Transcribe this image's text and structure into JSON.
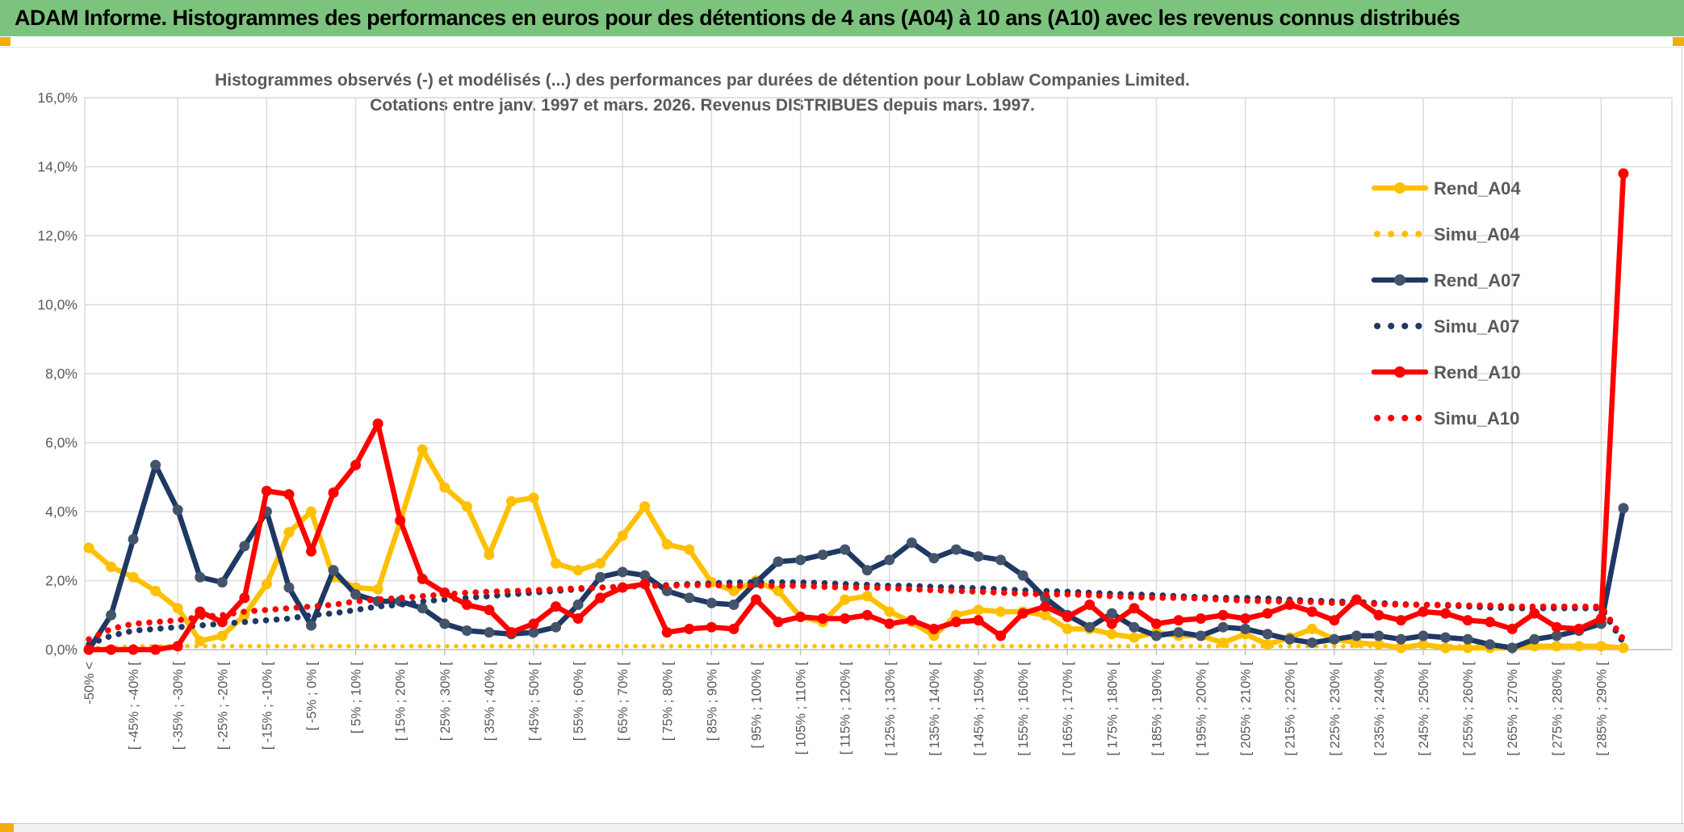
{
  "window": {
    "header_title": "ADAM Informe. Histogrammes des performances en euros pour des détentions de 4 ans (A04) à 10 ans (A10) avec les revenus connus distribués"
  },
  "chart": {
    "title_line1": "Histogrammes observés (-) et modélisés (...) des performances par durées de détention pour Loblaw Companies Limited.",
    "title_line2": "Cotations entre janv. 1997 et mars. 2026. Revenus DISTRIBUES depuis mars. 1997."
  },
  "colors": {
    "header_green": "#7cc47d",
    "accent_yellow": "#f2ac0e",
    "gold": "#FFC000",
    "navy": "#1F3864",
    "navy_marker": "#44546A",
    "red": "#FF0000",
    "text_gray": "#595959",
    "gridline": "#D9D9D9",
    "axis_line": "#BFBFBF"
  },
  "chart_data": {
    "type": "line",
    "title": "Histogrammes observés (-) et modélisés (...) des performances par durées de détention pour Loblaw Companies Limited. Cotations entre janv. 1997 et mars. 2026. Revenus DISTRIBUES depuis mars. 1997.",
    "xlabel": "",
    "ylabel": "",
    "ylim": [
      0,
      16
    ],
    "grid": true,
    "legend_position": "right-top",
    "y_tick_labels": [
      "0,0%",
      "2,0%",
      "4,0%",
      "6,0%",
      "8,0%",
      "10,0%",
      "12,0%",
      "14,0%",
      "16,0%"
    ],
    "categories": [
      "-50% <",
      "",
      "[ -45% ; -40% [",
      "",
      "[ -35% ; -30% [",
      "",
      "[ -25% ; -20% [",
      "",
      "[ -15% ; -10% [",
      "",
      "[ -5% ; 0% [",
      "",
      "[ 5% ; 10% [",
      "",
      "[ 15% ; 20% [",
      "",
      "[ 25% ; 30% [",
      "",
      "[ 35% ; 40% [",
      "",
      "[ 45% ; 50% [",
      "",
      "[ 55% ; 60% [",
      "",
      "[ 65% ; 70% [",
      "",
      "[ 75% ; 80% [",
      "",
      "[ 85% ; 90% [",
      "",
      "[ 95% ; 100% [",
      "",
      "[ 105% ; 110% [",
      "",
      "[ 115% ; 120% [",
      "",
      "[ 125% ; 130% [",
      "",
      "[ 135% ; 140% [",
      "",
      "[ 145% ; 150% [",
      "",
      "[ 155% ; 160% [",
      "",
      "[ 165% ; 170% [",
      "",
      "[ 175% ; 180% [",
      "",
      "[ 185% ; 190% [",
      "",
      "[ 195% ; 200% [",
      "",
      "[ 205% ; 210% [",
      "",
      "[ 215% ; 220% [",
      "",
      "[ 225% ; 230% [",
      "",
      "[ 235% ; 240% [",
      "",
      "[ 245% ; 250% [",
      "",
      "[ 255% ; 260% [",
      "",
      "[ 265% ; 270% [",
      "",
      "[ 275% ; 280% [",
      "",
      "[ 285% ; 290% [",
      ""
    ],
    "series": [
      {
        "name": "Rend_A04",
        "color": "#FFC000",
        "marker_color": "#FFC000",
        "style": "solid",
        "values": [
          2.95,
          2.4,
          2.1,
          1.7,
          1.2,
          0.25,
          0.4,
          1.0,
          1.9,
          3.4,
          4.0,
          2.1,
          1.8,
          1.75,
          3.7,
          5.8,
          4.7,
          4.15,
          2.75,
          4.3,
          4.4,
          2.5,
          2.3,
          2.5,
          3.3,
          4.15,
          3.05,
          2.9,
          1.95,
          1.7,
          2.0,
          1.7,
          0.95,
          0.8,
          1.45,
          1.55,
          1.1,
          0.8,
          0.4,
          1.0,
          1.15,
          1.1,
          1.1,
          1.0,
          0.6,
          0.6,
          0.45,
          0.35,
          0.5,
          0.4,
          0.4,
          0.2,
          0.45,
          0.15,
          0.35,
          0.6,
          0.3,
          0.2,
          0.15,
          0.05,
          0.15,
          0.05,
          0.05,
          0.05,
          0.05,
          0.1,
          0.1,
          0.1,
          0.1,
          0.05
        ]
      },
      {
        "name": "Simu_A04",
        "color": "#FFC000",
        "marker_color": "#FFC000",
        "style": "dotted",
        "values": [
          0.05,
          0.05,
          0.1,
          0.1,
          0.1,
          0.1,
          0.1,
          0.1,
          0.1,
          0.1,
          0.1,
          0.1,
          0.1,
          0.1,
          0.1,
          0.1,
          0.1,
          0.1,
          0.1,
          0.1,
          0.1,
          0.1,
          0.1,
          0.1,
          0.1,
          0.1,
          0.1,
          0.1,
          0.1,
          0.1,
          0.1,
          0.1,
          0.1,
          0.1,
          0.1,
          0.1,
          0.1,
          0.1,
          0.1,
          0.1,
          0.1,
          0.1,
          0.1,
          0.1,
          0.1,
          0.1,
          0.1,
          0.1,
          0.1,
          0.1,
          0.1,
          0.1,
          0.1,
          0.1,
          0.1,
          0.1,
          0.1,
          0.1,
          0.1,
          0.1,
          0.1,
          0.1,
          0.1,
          0.1,
          0.1,
          0.1,
          0.1,
          0.1,
          0.1,
          0.05
        ]
      },
      {
        "name": "Rend_A07",
        "color": "#1F3864",
        "marker_color": "#44546A",
        "style": "solid",
        "values": [
          0.0,
          1.0,
          3.2,
          5.35,
          4.05,
          2.1,
          1.95,
          3.0,
          4.0,
          1.8,
          0.7,
          2.3,
          1.6,
          1.4,
          1.4,
          1.2,
          0.75,
          0.55,
          0.5,
          0.45,
          0.5,
          0.65,
          1.3,
          2.1,
          2.25,
          2.15,
          1.7,
          1.5,
          1.35,
          1.3,
          1.95,
          2.55,
          2.6,
          2.75,
          2.9,
          2.3,
          2.6,
          3.1,
          2.65,
          2.9,
          2.7,
          2.6,
          2.15,
          1.5,
          1.0,
          0.65,
          1.05,
          0.65,
          0.4,
          0.5,
          0.4,
          0.65,
          0.6,
          0.45,
          0.3,
          0.2,
          0.3,
          0.4,
          0.4,
          0.3,
          0.4,
          0.35,
          0.3,
          0.15,
          0.05,
          0.3,
          0.4,
          0.55,
          0.75,
          4.1
        ]
      },
      {
        "name": "Simu_A07",
        "color": "#1F3864",
        "marker_color": "#1F3864",
        "style": "dotted",
        "values": [
          0.15,
          0.4,
          0.55,
          0.6,
          0.65,
          0.7,
          0.75,
          0.8,
          0.85,
          0.9,
          1.0,
          1.05,
          1.15,
          1.25,
          1.3,
          1.4,
          1.45,
          1.5,
          1.55,
          1.6,
          1.65,
          1.7,
          1.75,
          1.8,
          1.82,
          1.85,
          1.87,
          1.9,
          1.92,
          1.95,
          1.95,
          1.95,
          1.95,
          1.93,
          1.9,
          1.88,
          1.85,
          1.85,
          1.82,
          1.8,
          1.78,
          1.75,
          1.72,
          1.7,
          1.68,
          1.65,
          1.62,
          1.6,
          1.58,
          1.55,
          1.52,
          1.5,
          1.5,
          1.48,
          1.45,
          1.42,
          1.4,
          1.38,
          1.35,
          1.32,
          1.3,
          1.28,
          1.25,
          1.22,
          1.2,
          1.2,
          1.2,
          1.2,
          1.2,
          0.2
        ]
      },
      {
        "name": "Rend_A10",
        "color": "#FF0000",
        "marker_color": "#FF0000",
        "style": "solid",
        "values": [
          0.0,
          0.0,
          0.0,
          0.0,
          0.1,
          1.1,
          0.8,
          1.5,
          4.6,
          4.5,
          2.85,
          4.55,
          5.35,
          6.55,
          3.75,
          2.05,
          1.65,
          1.3,
          1.15,
          0.5,
          0.75,
          1.25,
          0.9,
          1.5,
          1.8,
          1.9,
          0.5,
          0.6,
          0.65,
          0.6,
          1.45,
          0.8,
          0.95,
          0.9,
          0.9,
          1.0,
          0.75,
          0.85,
          0.6,
          0.8,
          0.85,
          0.4,
          1.05,
          1.25,
          0.95,
          1.3,
          0.75,
          1.2,
          0.75,
          0.85,
          0.9,
          1.0,
          0.9,
          1.05,
          1.3,
          1.1,
          0.85,
          1.45,
          1.0,
          0.85,
          1.1,
          1.05,
          0.85,
          0.8,
          0.6,
          1.05,
          0.65,
          0.6,
          0.9,
          13.8
        ]
      },
      {
        "name": "Simu_A10",
        "color": "#FF0000",
        "marker_color": "#FF0000",
        "style": "dotted",
        "values": [
          0.3,
          0.6,
          0.75,
          0.8,
          0.85,
          0.95,
          1.0,
          1.1,
          1.15,
          1.2,
          1.25,
          1.3,
          1.4,
          1.45,
          1.5,
          1.55,
          1.6,
          1.65,
          1.68,
          1.7,
          1.72,
          1.75,
          1.78,
          1.8,
          1.82,
          1.85,
          1.85,
          1.87,
          1.87,
          1.85,
          1.85,
          1.85,
          1.85,
          1.82,
          1.8,
          1.8,
          1.78,
          1.75,
          1.72,
          1.7,
          1.68,
          1.65,
          1.62,
          1.6,
          1.6,
          1.58,
          1.55,
          1.52,
          1.5,
          1.5,
          1.48,
          1.45,
          1.42,
          1.4,
          1.4,
          1.38,
          1.35,
          1.35,
          1.32,
          1.3,
          1.3,
          1.3,
          1.28,
          1.28,
          1.25,
          1.25,
          1.25,
          1.25,
          1.25,
          0.3
        ]
      }
    ]
  }
}
